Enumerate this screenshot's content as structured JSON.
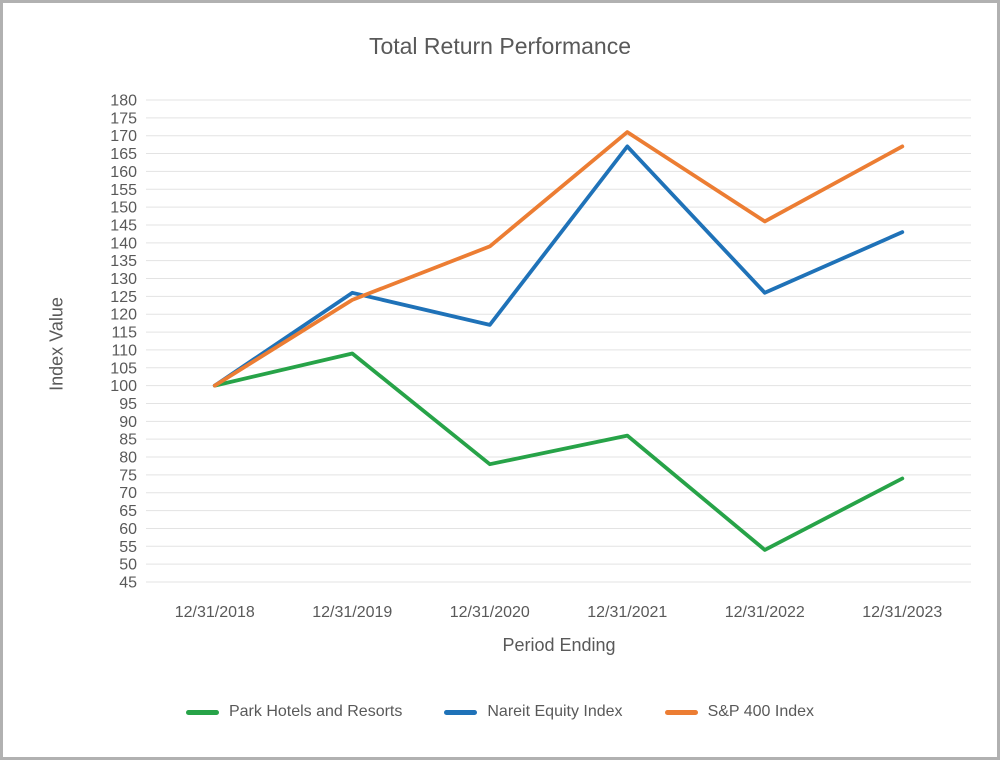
{
  "colors": {
    "text": "#595959",
    "gridline": "#e3e3e3",
    "frame_border": "#b1b1b1",
    "background": "#ffffff"
  },
  "chart_data": {
    "type": "line",
    "title": "Total Return Performance",
    "xlabel": "Period Ending",
    "ylabel": "Index Value",
    "categories": [
      "12/31/2018",
      "12/31/2019",
      "12/31/2020",
      "12/31/2021",
      "12/31/2022",
      "12/31/2023"
    ],
    "series": [
      {
        "name": "Park Hotels and Resorts",
        "color": "#27a348",
        "values": [
          100,
          109,
          78,
          86,
          54,
          74
        ]
      },
      {
        "name": "Nareit Equity Index",
        "color": "#1f72b8",
        "values": [
          100,
          126,
          117,
          167,
          126,
          143
        ]
      },
      {
        "name": "S&P 400 Index",
        "color": "#ec7d33",
        "values": [
          100,
          124,
          139,
          171,
          146,
          167
        ]
      }
    ],
    "ylim": [
      45,
      180
    ],
    "yticks": [
      180,
      175,
      170,
      165,
      160,
      155,
      150,
      145,
      140,
      135,
      130,
      125,
      120,
      115,
      110,
      105,
      100,
      95,
      90,
      85,
      80,
      75,
      70,
      65,
      60,
      55,
      50,
      45
    ],
    "grid": true,
    "legend_position": "bottom"
  }
}
